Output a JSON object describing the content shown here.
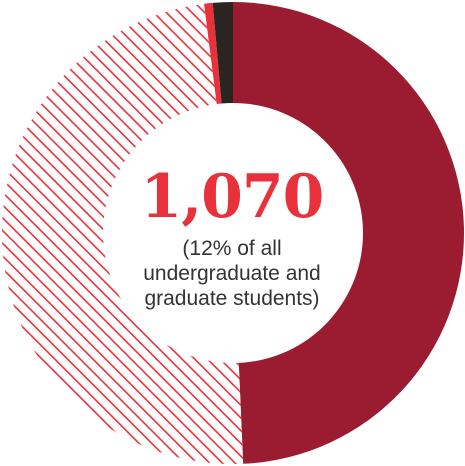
{
  "chart_data": {
    "type": "pie",
    "variant": "donut",
    "title": "",
    "center_value": "1,070",
    "center_caption": [
      "(12% of all",
      "undergraduate and",
      "graduate students)"
    ],
    "legend": "none",
    "slices": [
      {
        "value": 49.3,
        "color": "#9b1c31",
        "fill": "solid"
      },
      {
        "value": 48.7,
        "color": "#e8313b",
        "fill": "hatched"
      },
      {
        "value": 0.6,
        "color": "#e8313b",
        "fill": "solid"
      },
      {
        "value": 1.4,
        "color": "#2b2522",
        "fill": "solid"
      }
    ]
  }
}
